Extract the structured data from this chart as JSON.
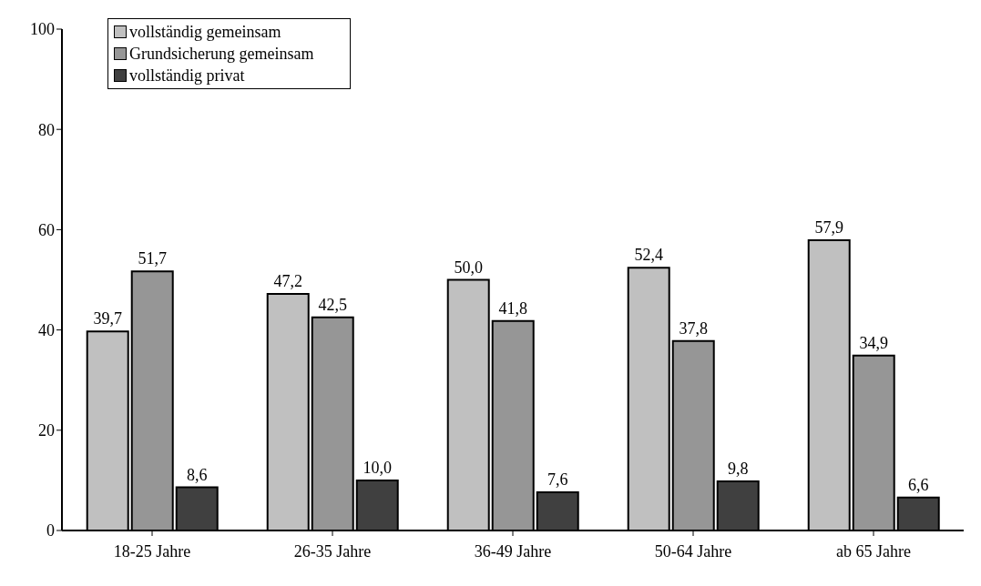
{
  "chart_data": {
    "type": "bar",
    "categories": [
      "18-25 Jahre",
      "26-35 Jahre",
      "36-49 Jahre",
      "50-64 Jahre",
      "ab 65 Jahre"
    ],
    "series": [
      {
        "name": "vollständig gemeinsam",
        "color": "#c0c0c0",
        "values": [
          39.7,
          47.2,
          50.0,
          52.4,
          57.9
        ],
        "value_labels": [
          "39,7",
          "47,2",
          "50,0",
          "52,4",
          "57,9"
        ]
      },
      {
        "name": "Grundsicherung gemeinsam",
        "color": "#969696",
        "values": [
          51.7,
          42.5,
          41.8,
          37.8,
          34.9
        ],
        "value_labels": [
          "51,7",
          "42,5",
          "41,8",
          "37,8",
          "34,9"
        ]
      },
      {
        "name": "vollständig privat",
        "color": "#404040",
        "values": [
          8.6,
          10.0,
          7.6,
          9.8,
          6.6
        ],
        "value_labels": [
          "8,6",
          "10,0",
          "7,6",
          "9,8",
          "6,6"
        ]
      }
    ],
    "ylim": [
      0,
      100
    ],
    "yticks": [
      0,
      20,
      40,
      60,
      80,
      100
    ],
    "grid": false,
    "legend": "top left"
  }
}
